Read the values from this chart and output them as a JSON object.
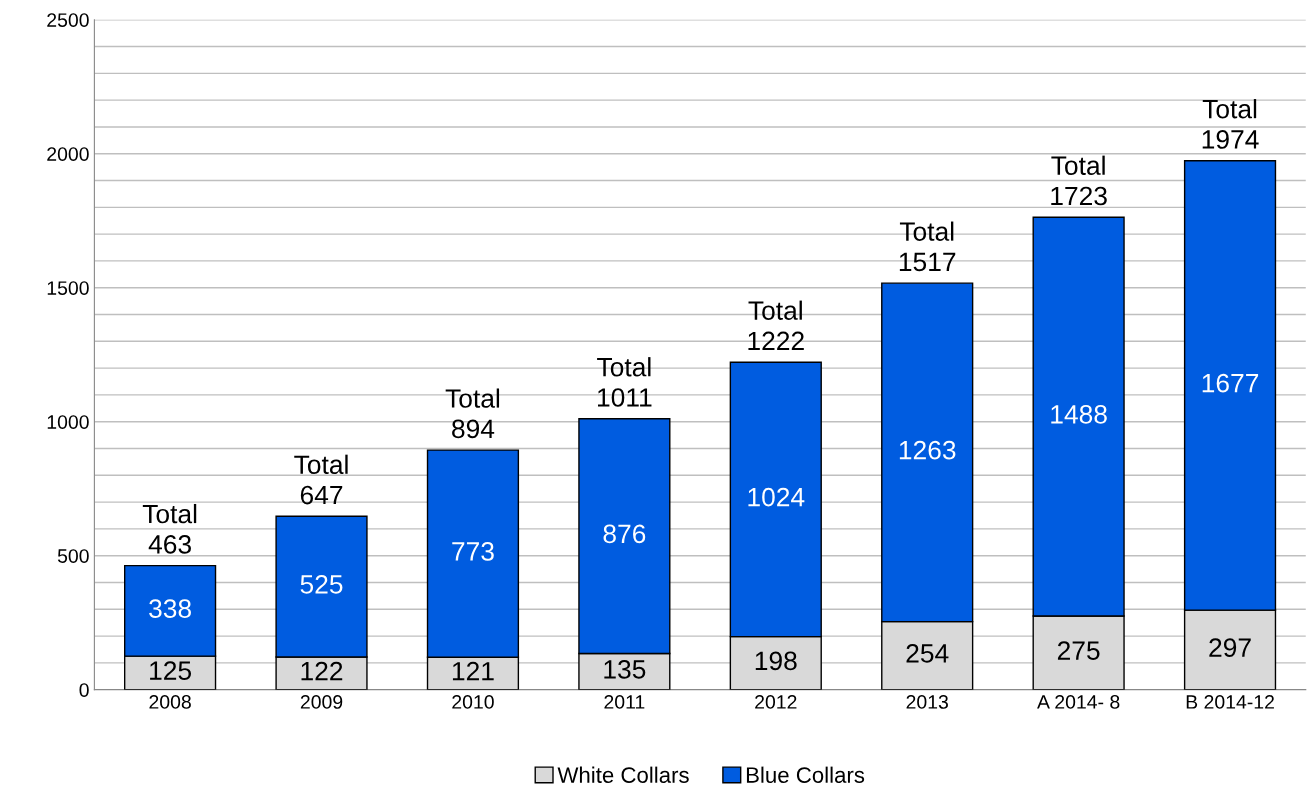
{
  "chart_data": {
    "type": "bar",
    "stacked": true,
    "categories": [
      "2008",
      "2009",
      "2010",
      "2011",
      "2012",
      "2013",
      "A 2014- 8",
      "B 2014-12"
    ],
    "series": [
      {
        "name": "White Collars",
        "color": "#d9d9d9",
        "values": [
          125,
          122,
          121,
          135,
          198,
          254,
          275,
          297
        ]
      },
      {
        "name": "Blue Collars",
        "color": "#005ce0",
        "values": [
          338,
          525,
          773,
          876,
          1024,
          1263,
          1488,
          1677
        ]
      }
    ],
    "totals": [
      "Total\n463",
      "Total\n647",
      "Total\n894",
      "Total\n1011",
      "Total\n1222",
      "Total\n1517",
      "Total\n1723",
      "Total\n1974"
    ],
    "data_labels": true,
    "ylim": [
      0,
      2500
    ],
    "yticks": [
      0,
      {
        "value": 100,
        "label": null
      },
      {
        "value": 200,
        "label": null
      },
      {
        "value": 300,
        "label": null
      },
      {
        "value": 400,
        "label": null
      },
      500,
      {
        "value": 600,
        "label": null
      },
      {
        "value": 700,
        "label": null
      },
      {
        "value": 800,
        "label": null
      },
      {
        "value": 900,
        "label": null
      },
      1000,
      {
        "value": 1100,
        "label": null
      },
      {
        "value": 1200,
        "label": null
      },
      {
        "value": 1300,
        "label": null
      },
      {
        "value": 1400,
        "label": null
      },
      1500,
      {
        "value": 1600,
        "label": null
      },
      {
        "value": 1700,
        "label": null
      },
      {
        "value": 1800,
        "label": null
      },
      {
        "value": 1900,
        "label": null
      },
      2000,
      {
        "value": 2100,
        "label": null
      },
      {
        "value": 2200,
        "label": null
      },
      {
        "value": 2300,
        "label": null
      },
      {
        "value": 2400,
        "label": null
      },
      2500
    ],
    "grid": "y",
    "legend": "bottom"
  }
}
